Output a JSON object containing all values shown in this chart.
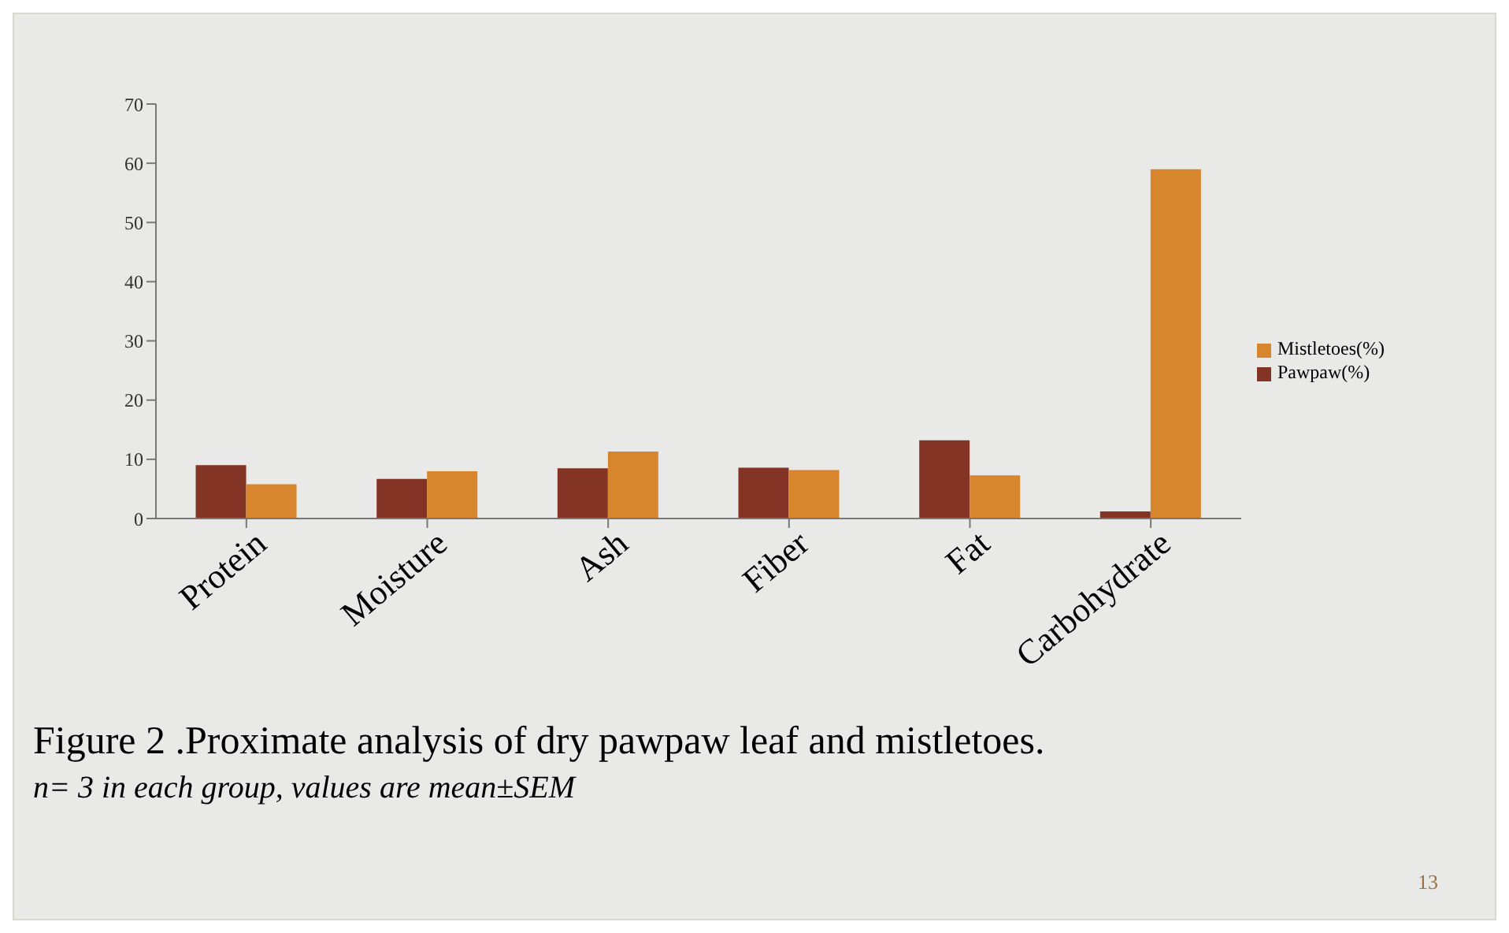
{
  "chart_data": {
    "type": "bar",
    "title": "Figure 2 .Proximate analysis of dry pawpaw leaf and mistletoes.",
    "subtitle": "n= 3 in each group, values are mean±SEM",
    "annotations": [
      "13"
    ],
    "categories": [
      "Protein",
      "Moisture",
      "Ash",
      "Fiber",
      "Fat",
      "Carbohydrate"
    ],
    "series": [
      {
        "name": "Pawpaw(%)",
        "color": "#843424",
        "values": [
          9.0,
          6.7,
          8.5,
          8.6,
          13.2,
          1.2
        ]
      },
      {
        "name": "Mistletoes(%)",
        "color": "#d7862e",
        "values": [
          5.8,
          8.0,
          11.3,
          8.2,
          7.3,
          59.0
        ]
      }
    ],
    "ylim": [
      0,
      70
    ],
    "yticks": [
      0,
      10,
      20,
      30,
      40,
      50,
      60,
      70
    ],
    "grid": false,
    "legend": "right"
  }
}
